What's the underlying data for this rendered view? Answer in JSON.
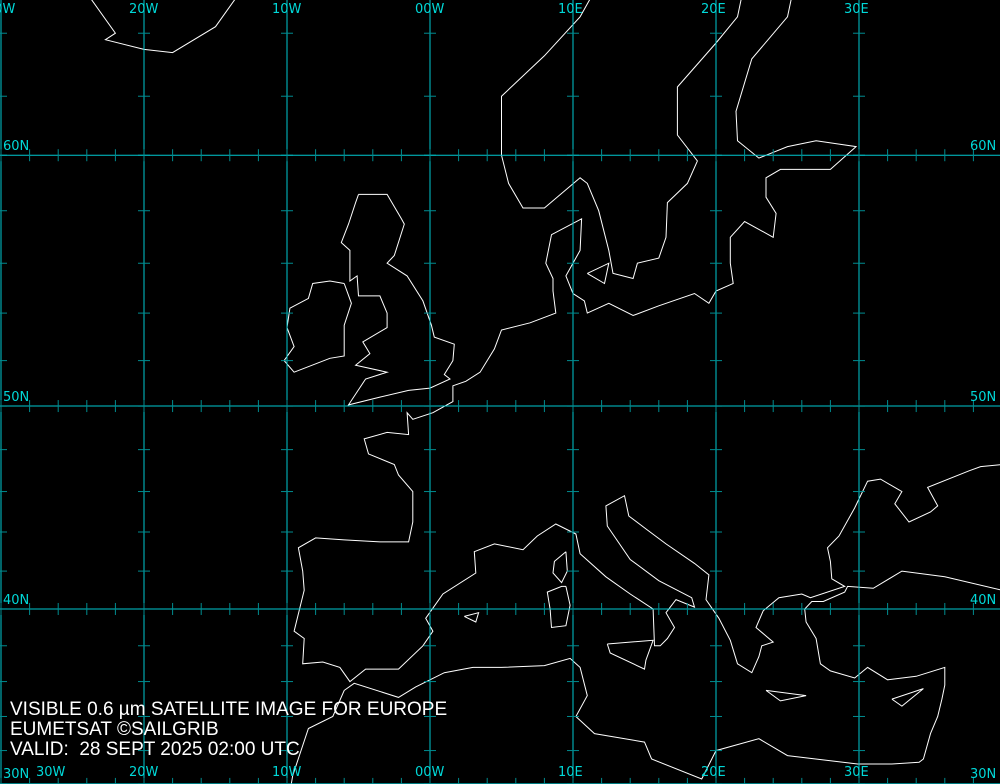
{
  "caption": {
    "line1": "VISIBLE 0.6 µm SATELLITE IMAGE FOR EUROPE",
    "line2": "EUMETSAT ©SAILGRIB",
    "line3": "VALID:  28 SEPT 2025 02:00 UTC"
  },
  "grid": {
    "longitudes": [
      {
        "lon": -30,
        "label": "30W"
      },
      {
        "lon": -20,
        "label": "20W"
      },
      {
        "lon": -10,
        "label": "10W"
      },
      {
        "lon": 0,
        "label": "00W"
      },
      {
        "lon": 10,
        "label": "10E"
      },
      {
        "lon": 20,
        "label": "20E"
      },
      {
        "lon": 30,
        "label": "30E"
      }
    ],
    "latitudes": [
      {
        "lat": 60,
        "label": "60N"
      },
      {
        "lat": 50,
        "label": "50N"
      },
      {
        "lat": 40,
        "label": "40N"
      },
      {
        "lat": 30,
        "label": "30N"
      }
    ],
    "tick_interval_deg": 2
  },
  "colors": {
    "background": "#000000",
    "grid": "#00c8d0",
    "tick": "#008c90",
    "label": "#00d8d8",
    "coast": "#ffffff",
    "caption": "#ffffff"
  }
}
